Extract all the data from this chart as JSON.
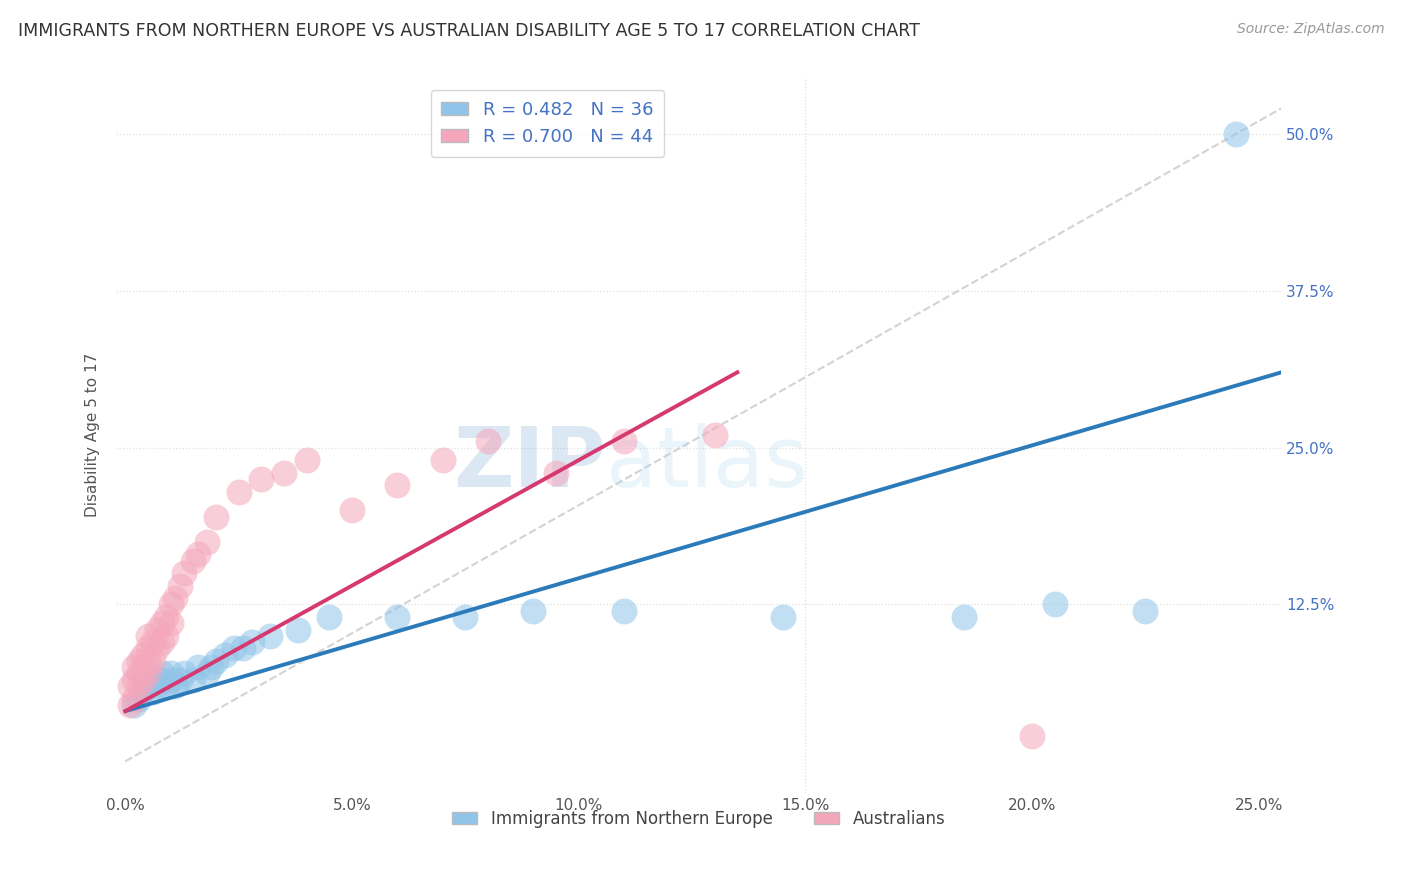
{
  "title": "IMMIGRANTS FROM NORTHERN EUROPE VS AUSTRALIAN DISABILITY AGE 5 TO 17 CORRELATION CHART",
  "source": "Source: ZipAtlas.com",
  "ylabel": "Disability Age 5 to 17",
  "legend_label1": "Immigrants from Northern Europe",
  "legend_label2": "Australians",
  "R1": 0.482,
  "N1": 36,
  "R2": 0.7,
  "N2": 44,
  "xlim": [
    -0.002,
    0.255
  ],
  "ylim": [
    -0.025,
    0.545
  ],
  "xticks": [
    0.0,
    0.05,
    0.1,
    0.15,
    0.2,
    0.25
  ],
  "yticks": [
    0.0,
    0.125,
    0.25,
    0.375,
    0.5
  ],
  "xtick_labels": [
    "0.0%",
    "5.0%",
    "10.0%",
    "15.0%",
    "20.0%",
    "25.0%"
  ],
  "ytick_labels": [
    "",
    "12.5%",
    "25.0%",
    "37.5%",
    "50.0%"
  ],
  "color_blue": "#90c4e8",
  "color_pink": "#f4a7bb",
  "color_line_blue": "#2b7bba",
  "color_line_pink": "#d63870",
  "color_ref_line": "#c8c8c8",
  "watermark_zip": "ZIP",
  "watermark_atlas": "atlas",
  "background_color": "#ffffff",
  "grid_color": "#e0e0e0",
  "blue_points_x": [
    0.002,
    0.003,
    0.004,
    0.005,
    0.005,
    0.006,
    0.007,
    0.008,
    0.008,
    0.009,
    0.01,
    0.01,
    0.011,
    0.012,
    0.013,
    0.015,
    0.016,
    0.018,
    0.019,
    0.02,
    0.022,
    0.024,
    0.026,
    0.028,
    0.032,
    0.038,
    0.045,
    0.06,
    0.075,
    0.09,
    0.11,
    0.145,
    0.185,
    0.205,
    0.225,
    0.245
  ],
  "blue_points_y": [
    0.045,
    0.05,
    0.055,
    0.06,
    0.065,
    0.055,
    0.06,
    0.065,
    0.07,
    0.06,
    0.065,
    0.07,
    0.06,
    0.065,
    0.07,
    0.065,
    0.075,
    0.07,
    0.075,
    0.08,
    0.085,
    0.09,
    0.09,
    0.095,
    0.1,
    0.105,
    0.115,
    0.115,
    0.115,
    0.12,
    0.12,
    0.115,
    0.115,
    0.125,
    0.12,
    0.5
  ],
  "pink_points_x": [
    0.001,
    0.001,
    0.002,
    0.002,
    0.002,
    0.003,
    0.003,
    0.003,
    0.004,
    0.004,
    0.004,
    0.005,
    0.005,
    0.005,
    0.005,
    0.006,
    0.006,
    0.007,
    0.007,
    0.008,
    0.008,
    0.009,
    0.009,
    0.01,
    0.01,
    0.011,
    0.012,
    0.013,
    0.015,
    0.016,
    0.018,
    0.02,
    0.025,
    0.03,
    0.035,
    0.04,
    0.05,
    0.06,
    0.07,
    0.08,
    0.095,
    0.11,
    0.13,
    0.2
  ],
  "pink_points_y": [
    0.045,
    0.06,
    0.05,
    0.065,
    0.075,
    0.06,
    0.07,
    0.08,
    0.065,
    0.075,
    0.085,
    0.07,
    0.08,
    0.09,
    0.1,
    0.08,
    0.095,
    0.09,
    0.105,
    0.095,
    0.11,
    0.1,
    0.115,
    0.11,
    0.125,
    0.13,
    0.14,
    0.15,
    0.16,
    0.165,
    0.175,
    0.195,
    0.215,
    0.225,
    0.23,
    0.24,
    0.2,
    0.22,
    0.24,
    0.255,
    0.23,
    0.255,
    0.26,
    0.02
  ],
  "blue_line_x": [
    0.0,
    0.255
  ],
  "blue_line_y": [
    0.04,
    0.31
  ],
  "pink_line_x": [
    0.0,
    0.135
  ],
  "pink_line_y": [
    0.04,
    0.31
  ]
}
